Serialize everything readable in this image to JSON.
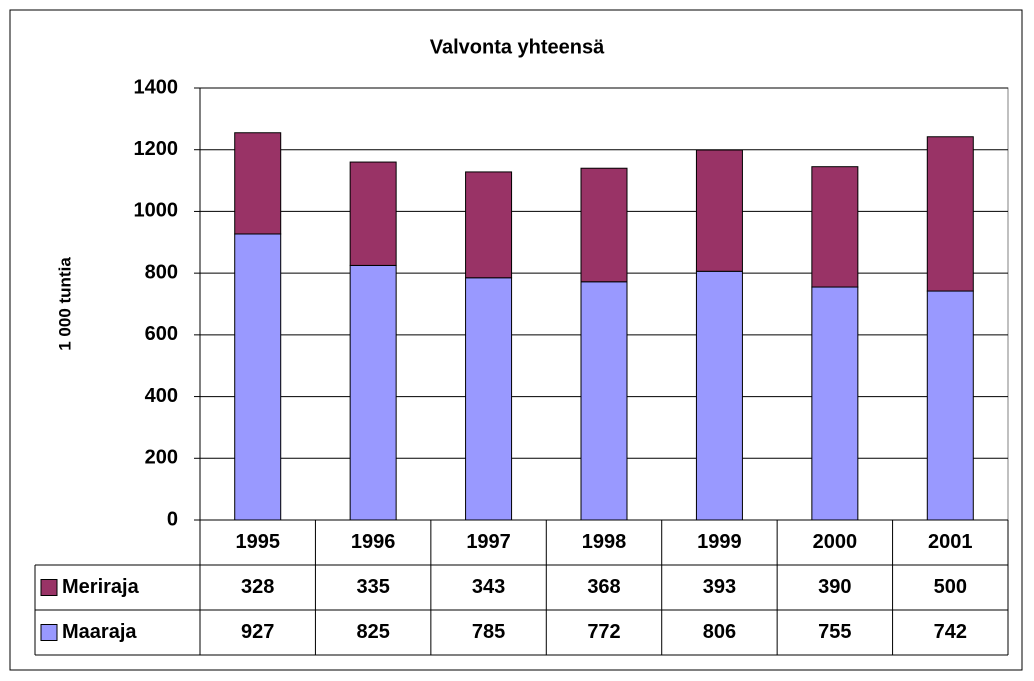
{
  "chart_data": {
    "type": "stacked_bar_with_table",
    "title": "Valvonta yhteensä",
    "y_label": "1 000 tuntia",
    "categories": [
      "1995",
      "1996",
      "1997",
      "1998",
      "1999",
      "2000",
      "2001"
    ],
    "series": [
      {
        "name": "Meriraja",
        "color": "#993366",
        "values": [
          328,
          335,
          343,
          368,
          393,
          390,
          500
        ]
      },
      {
        "name": "Maaraja",
        "color": "#9999FF",
        "values": [
          927,
          825,
          785,
          772,
          806,
          755,
          742
        ]
      }
    ],
    "ylim": [
      0,
      1400
    ],
    "yticks": [
      0,
      200,
      400,
      600,
      800,
      1000,
      1200,
      1400
    ],
    "grid": true
  }
}
